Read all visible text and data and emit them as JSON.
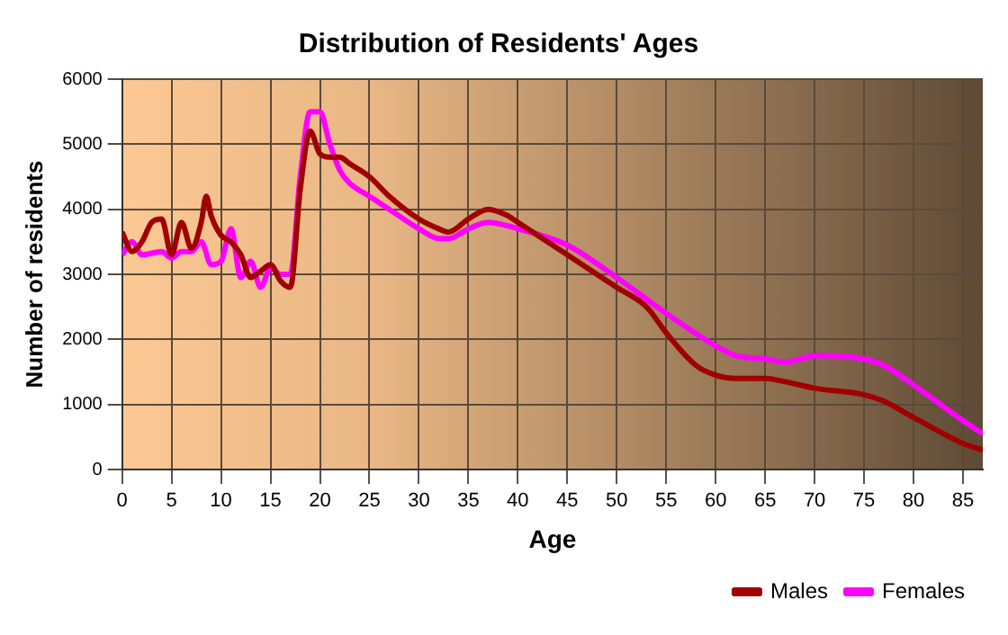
{
  "chart_data": {
    "type": "line",
    "title": "Distribution of Residents' Ages",
    "xlabel": "Age",
    "ylabel": "Number of residents",
    "xlim": [
      0,
      87
    ],
    "xticks": [
      0,
      5,
      10,
      15,
      20,
      25,
      30,
      35,
      40,
      45,
      50,
      55,
      60,
      65,
      70,
      75,
      80,
      85
    ],
    "ylim": [
      0,
      6000
    ],
    "yticks": [
      0,
      1000,
      2000,
      3000,
      4000,
      5000,
      6000
    ],
    "grid": true,
    "legend": "bottom right",
    "marker": "none",
    "line_style": "solid",
    "series": [
      {
        "name": "Males",
        "color": "#a00000",
        "x": [
          0,
          1,
          2,
          3,
          4,
          5,
          6,
          7,
          8,
          8.5,
          9,
          10,
          11,
          12,
          13,
          14,
          15,
          16,
          17,
          18,
          19,
          20,
          21,
          22,
          23,
          25,
          27,
          30,
          32,
          33,
          35,
          37,
          39,
          40,
          45,
          50,
          53,
          55,
          58,
          60,
          62,
          65,
          67,
          70,
          75,
          77,
          80,
          85,
          87
        ],
        "values": [
          3650,
          3350,
          3500,
          3800,
          3850,
          3300,
          3800,
          3400,
          3800,
          4200,
          3900,
          3600,
          3500,
          3300,
          2950,
          3050,
          3150,
          2900,
          2800,
          4300,
          5200,
          4850,
          4800,
          4800,
          4700,
          4500,
          4200,
          3850,
          3700,
          3650,
          3850,
          4000,
          3900,
          3800,
          3300,
          2800,
          2500,
          2100,
          1600,
          1450,
          1400,
          1400,
          1350,
          1250,
          1150,
          1050,
          800,
          400,
          300
        ]
      },
      {
        "name": "Females",
        "color": "#ff00ff",
        "x": [
          0,
          1,
          2,
          4,
          5,
          6,
          7,
          8,
          9,
          10,
          11,
          12,
          13,
          14,
          15,
          16,
          17,
          18,
          19,
          20,
          21,
          22,
          23,
          25,
          27,
          30,
          32,
          33,
          35,
          37,
          40,
          45,
          50,
          55,
          60,
          62,
          65,
          67,
          70,
          72,
          75,
          77,
          80,
          85,
          87
        ],
        "values": [
          3300,
          3500,
          3300,
          3350,
          3250,
          3350,
          3350,
          3500,
          3150,
          3200,
          3700,
          2950,
          3200,
          2800,
          3100,
          3000,
          3000,
          4500,
          5500,
          5500,
          5000,
          4600,
          4400,
          4200,
          4000,
          3700,
          3550,
          3550,
          3700,
          3800,
          3700,
          3450,
          2950,
          2400,
          1900,
          1750,
          1700,
          1650,
          1750,
          1750,
          1700,
          1600,
          1300,
          750,
          550
        ]
      }
    ]
  }
}
